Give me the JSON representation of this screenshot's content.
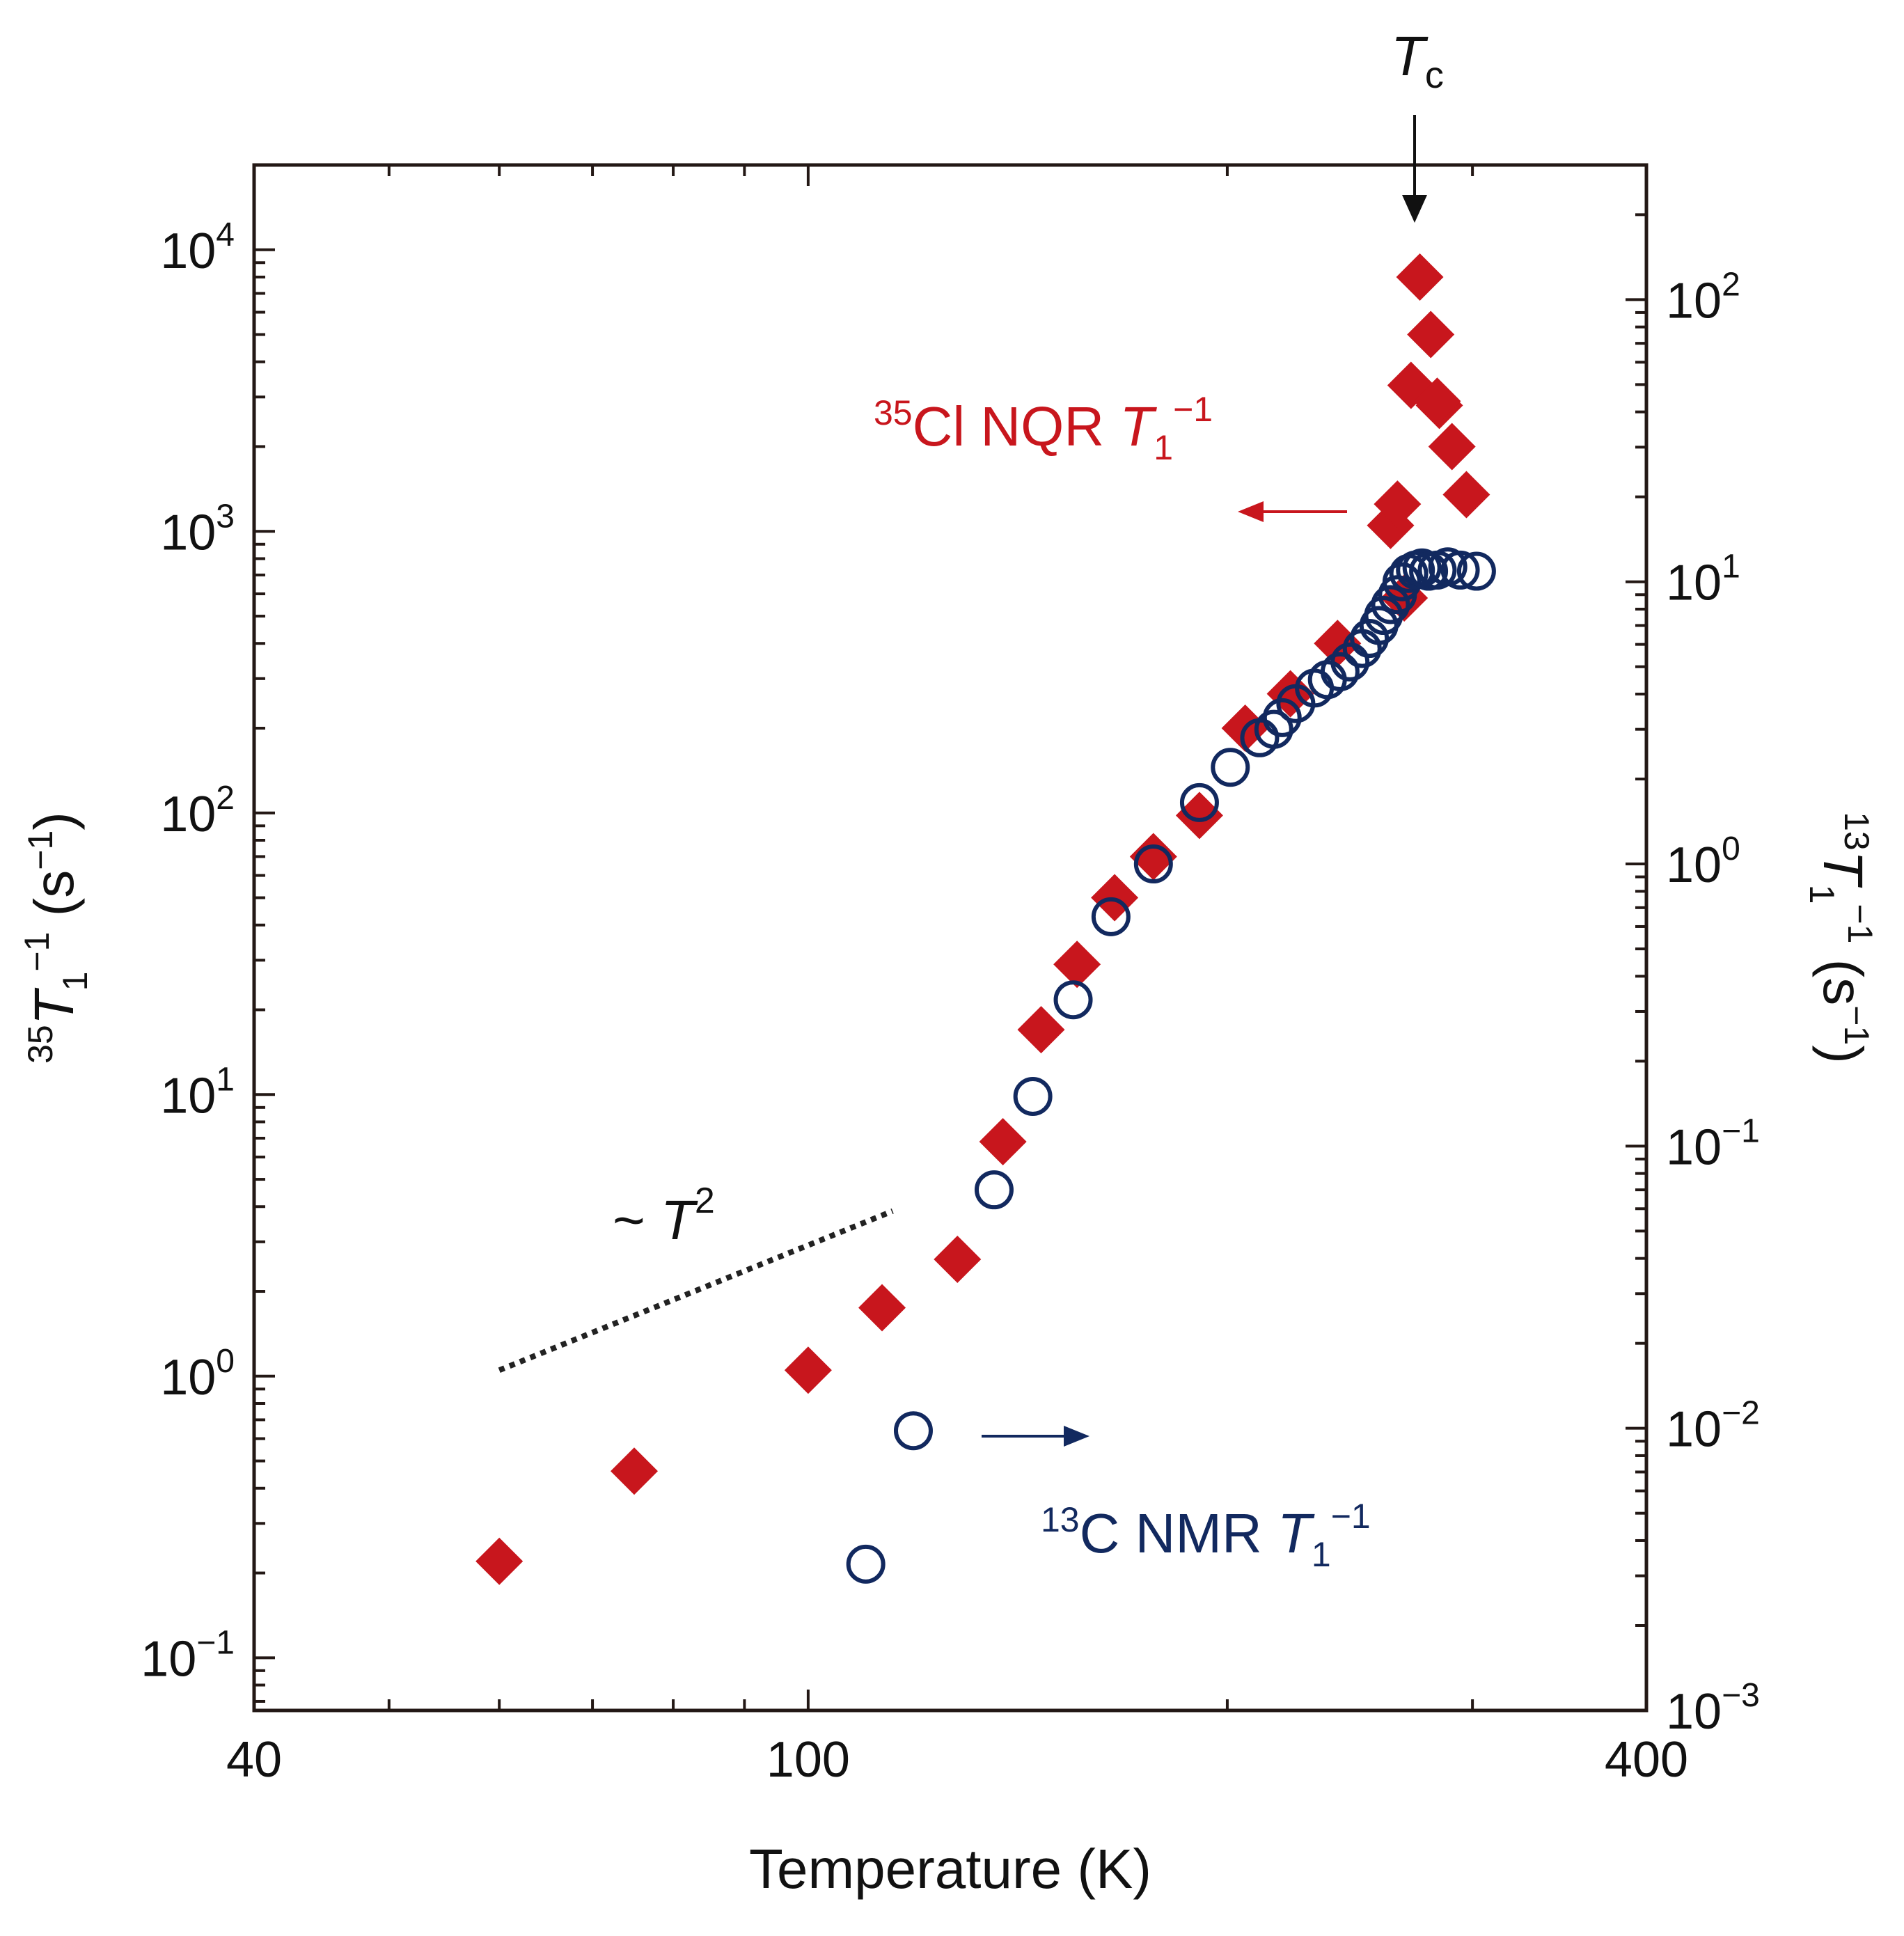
{
  "chart_data": {
    "type": "scatter",
    "xscale": "log",
    "yscale": "log",
    "xlabel": "Temperature (K)",
    "x_ticks": [
      "40",
      "100",
      "400"
    ],
    "xlim": [
      40,
      400
    ],
    "y_left": {
      "label": {
        "sup": "35",
        "main": "T",
        "sub": "1",
        "supexp": "−1",
        "unit": " (s",
        "unitexp": "−1",
        "close": ")"
      },
      "lim": [
        0.065,
        20000
      ],
      "ticks": [
        {
          "base": "10",
          "exp": "−1"
        },
        {
          "base": "10",
          "exp": "0"
        },
        {
          "base": "10",
          "exp": "1"
        },
        {
          "base": "10",
          "exp": "2"
        },
        {
          "base": "10",
          "exp": "3"
        },
        {
          "base": "10",
          "exp": "4"
        }
      ]
    },
    "y_right": {
      "label": {
        "sup": "13",
        "main": "T",
        "sub": "1",
        "supexp": "−1",
        "unit": " (s",
        "unitexp": "−1",
        "close": ")"
      },
      "lim": [
        0.001,
        300
      ],
      "ticks": [
        {
          "base": "10",
          "exp": "−3"
        },
        {
          "base": "10",
          "exp": "−2"
        },
        {
          "base": "10",
          "exp": "−1"
        },
        {
          "base": "10",
          "exp": "0"
        },
        {
          "base": "10",
          "exp": "1"
        },
        {
          "base": "10",
          "exp": "2"
        }
      ]
    },
    "series": [
      {
        "name": "35Cl NQR T1−1",
        "axis": "left",
        "marker": "diamond",
        "color": "#c8161d",
        "points": [
          [
            60,
            0.22
          ],
          [
            75,
            0.46
          ],
          [
            100,
            1.05
          ],
          [
            113,
            1.75
          ],
          [
            128,
            2.6
          ],
          [
            138,
            6.8
          ],
          [
            147,
            17
          ],
          [
            156,
            29
          ],
          [
            166,
            50
          ],
          [
            177,
            70
          ],
          [
            191,
            98
          ],
          [
            206,
            200
          ],
          [
            222,
            265
          ],
          [
            240,
            400
          ],
          [
            262,
            1050
          ],
          [
            265,
            1250
          ],
          [
            271,
            3300
          ],
          [
            275,
            8000
          ],
          [
            280,
            5000
          ],
          [
            284,
            2800
          ],
          [
            290,
            2000
          ],
          [
            297,
            1350
          ],
          [
            268,
            580
          ],
          [
            283,
            2900
          ]
        ]
      },
      {
        "name": "13C NMR T1−1",
        "axis": "right",
        "marker": "open-circle",
        "color": "#12295f",
        "points": [
          [
            110,
            0.0033
          ],
          [
            119,
            0.0098
          ],
          [
            136,
            0.07
          ],
          [
            145,
            0.15
          ],
          [
            155,
            0.33
          ],
          [
            165,
            0.65
          ],
          [
            177,
            1.0
          ],
          [
            191,
            1.65
          ],
          [
            201,
            2.2
          ],
          [
            211,
            2.8
          ],
          [
            216,
            3.0
          ],
          [
            219,
            3.3
          ],
          [
            224,
            3.7
          ],
          [
            231,
            4.2
          ],
          [
            236,
            4.5
          ],
          [
            241,
            4.8
          ],
          [
            245,
            5.2
          ],
          [
            250,
            5.8
          ],
          [
            253,
            6.3
          ],
          [
            257,
            7.0
          ],
          [
            259,
            7.6
          ],
          [
            262,
            8.3
          ],
          [
            265,
            9.0
          ],
          [
            267,
            10.0
          ],
          [
            270,
            10.7
          ],
          [
            273,
            11.0
          ],
          [
            276,
            11.2
          ],
          [
            279,
            10.9
          ],
          [
            283,
            11.0
          ],
          [
            288,
            11.3
          ],
          [
            294,
            11.0
          ],
          [
            302,
            10.9
          ]
        ]
      }
    ],
    "annotations": {
      "tc": {
        "main": "T",
        "sub": "c",
        "at_x": 275
      },
      "cl_label": {
        "sup": "35",
        "text": "Cl NQR ",
        "main": "T",
        "sub": "1",
        "supexp": "−1"
      },
      "c_label": {
        "sup": "13",
        "text": "C NMR ",
        "main": "T",
        "sub": "1",
        "supexp": "−1"
      },
      "power_law": {
        "text": "~ ",
        "main": "T",
        "supexp": "2",
        "x_range": [
          60,
          115
        ],
        "y_start": 1.05,
        "exponent": 2
      }
    }
  }
}
